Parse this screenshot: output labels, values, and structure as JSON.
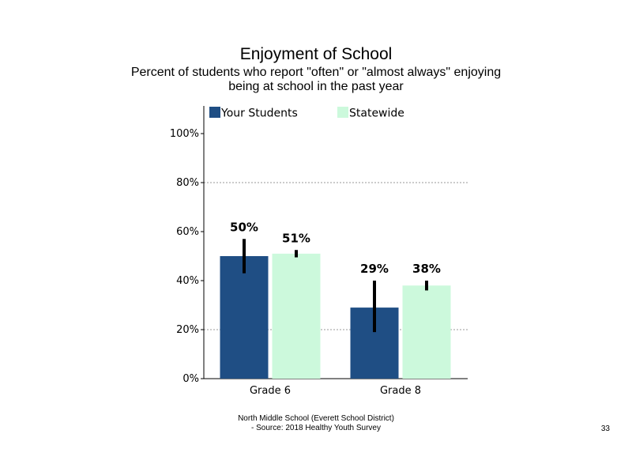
{
  "chart_data": {
    "type": "bar",
    "title": "Enjoyment  of School",
    "subtitle_lines": [
      "Percent of students  who report \"often\" or \"almost  always\" enjoying",
      "being at school in the past year"
    ],
    "categories": [
      "Grade 6",
      "Grade 8"
    ],
    "series": [
      {
        "name": "Your Students",
        "color": "#1f4e84",
        "values": [
          50,
          29
        ],
        "labels": [
          "50%",
          "29%"
        ],
        "error": [
          [
            43,
            57
          ],
          [
            19,
            40
          ]
        ]
      },
      {
        "name": "Statewide",
        "color": "#ccf9dc",
        "values": [
          51,
          38
        ],
        "labels": [
          "51%",
          "38%"
        ],
        "error": [
          [
            49.5,
            52.5
          ],
          [
            36,
            40
          ]
        ]
      }
    ],
    "ylim": [
      0,
      100
    ],
    "yticks": [
      0,
      20,
      40,
      60,
      80,
      100
    ],
    "ytick_labels": [
      "0%",
      "20%",
      "40%",
      "60%",
      "80%",
      "100%"
    ],
    "gridlines": [
      20,
      80
    ],
    "legend": "top"
  },
  "footer": {
    "line1": "North Middle School (Everett School District)",
    "line2": "- Source: 2018 Healthy  Youth Survey"
  },
  "page_number": "33"
}
